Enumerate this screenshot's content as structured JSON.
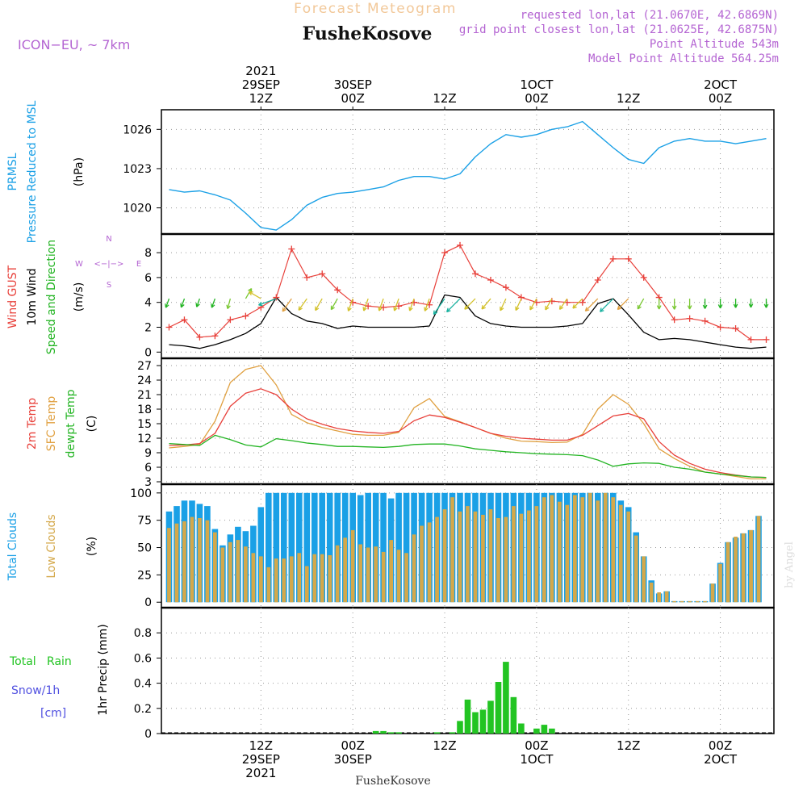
{
  "header": {
    "title": "Forecast Meteogram",
    "location": "FusheKosove",
    "model": "ICON−EU, ~ 7km",
    "requested": "requested lon,lat (21.0670E, 42.6869N)",
    "closest": "grid point closest lon,lat (21.0625E, 42.6875N)",
    "altitude": "Point Altitude 543m",
    "model_altitude": "Model Point Altitude 564.25m",
    "footer_location": "FusheKosove",
    "watermark": "by Angel"
  },
  "colors": {
    "pressure": "#1aa0e6",
    "gust": "#e8403a",
    "wind": "#000000",
    "direction": "#22b422",
    "t2m": "#e8403a",
    "sfc": "#e0a040",
    "dew": "#22b422",
    "total_cloud": "#1aa0e6",
    "low_cloud": "#d4a84a",
    "rain": "#22c422",
    "snow": "#5050e0",
    "title": "#f2c899",
    "meta": "#b464d2"
  },
  "time_axis": {
    "top": [
      {
        "h": 12,
        "lines": [
          "2021",
          "29SEP",
          "12Z"
        ]
      },
      {
        "h": 24,
        "lines": [
          "30SEP",
          "00Z"
        ]
      },
      {
        "h": 36,
        "lines": [
          "12Z"
        ]
      },
      {
        "h": 48,
        "lines": [
          "1OCT",
          "00Z"
        ]
      },
      {
        "h": 60,
        "lines": [
          "12Z"
        ]
      },
      {
        "h": 72,
        "lines": [
          "2OCT",
          "00Z"
        ]
      }
    ],
    "bottom": [
      {
        "h": 12,
        "lines": [
          "12Z",
          "29SEP",
          "2021"
        ]
      },
      {
        "h": 24,
        "lines": [
          "00Z",
          "30SEP"
        ]
      },
      {
        "h": 36,
        "lines": [
          "12Z"
        ]
      },
      {
        "h": 48,
        "lines": [
          "00Z",
          "1OCT"
        ]
      },
      {
        "h": 60,
        "lines": [
          "12Z"
        ]
      },
      {
        "h": 72,
        "lines": [
          "00Z",
          "2OCT"
        ]
      }
    ]
  },
  "panels": {
    "pressure": {
      "label_lines": [
        "PRMSL",
        "Pressure Reduced to MSL"
      ],
      "unit": "(hPa)"
    },
    "wind": {
      "label_gust": "Wind GUST",
      "label_wind": "10m Wind",
      "label_dir": "Speed and Direction",
      "unit": "(m/s)",
      "compass": {
        "n": "N",
        "s": "S",
        "w": "W",
        "e": "E",
        "arrows": "<−|−>"
      }
    },
    "temp": {
      "label_t2m": "2m Temp",
      "label_sfc": "SFC Temp",
      "label_dew": "dewpt Temp",
      "unit": "(C)"
    },
    "cloud": {
      "label_total": "Total Clouds",
      "label_low": "Low Clouds",
      "unit": "(%)"
    },
    "precip": {
      "label_rain": "Total   Rain",
      "label_snow": "Snow/1h",
      "label_snow_unit": "[cm]",
      "label_unit": "1hr Precip (mm)"
    }
  },
  "chart_data": [
    {
      "type": "line",
      "panel": "pressure",
      "xlabel": "",
      "ylabel": "(hPa)",
      "x_hours": [
        0,
        2,
        4,
        6,
        8,
        10,
        12,
        14,
        16,
        18,
        20,
        22,
        24,
        26,
        28,
        30,
        32,
        34,
        36,
        38,
        40,
        42,
        44,
        46,
        48,
        50,
        52,
        54,
        56,
        58,
        60,
        62,
        64,
        66,
        68,
        70,
        72,
        74,
        76,
        78
      ],
      "series": [
        {
          "name": "PRMSL",
          "values": [
            1021.4,
            1021.2,
            1021.3,
            1021.0,
            1020.6,
            1019.6,
            1018.5,
            1018.3,
            1019.1,
            1020.2,
            1020.8,
            1021.1,
            1021.2,
            1021.4,
            1021.6,
            1022.1,
            1022.4,
            1022.4,
            1022.2,
            1022.6,
            1023.9,
            1024.9,
            1025.6,
            1025.4,
            1025.6,
            1026.0,
            1026.2,
            1026.6,
            1025.6,
            1024.6,
            1023.7,
            1023.4,
            1024.6,
            1025.1,
            1025.3,
            1025.1,
            1025.1,
            1024.9,
            1025.1,
            1025.3
          ]
        }
      ],
      "ylim": [
        1018,
        1027.5
      ],
      "yticks": [
        1020,
        1023,
        1026
      ]
    },
    {
      "type": "line",
      "panel": "wind",
      "xlabel": "",
      "ylabel": "(m/s)",
      "x_hours": [
        0,
        2,
        4,
        6,
        8,
        10,
        12,
        14,
        16,
        18,
        20,
        22,
        24,
        26,
        28,
        30,
        32,
        34,
        36,
        38,
        40,
        42,
        44,
        46,
        48,
        50,
        52,
        54,
        56,
        58,
        60,
        62,
        64,
        66,
        68,
        70,
        72,
        74,
        76,
        78
      ],
      "series": [
        {
          "name": "Wind GUST",
          "values": [
            2.0,
            2.6,
            1.2,
            1.3,
            2.6,
            2.9,
            3.6,
            4.4,
            8.3,
            6.0,
            6.3,
            5.0,
            4.0,
            3.7,
            3.6,
            3.7,
            4.0,
            3.8,
            8.0,
            8.6,
            6.3,
            5.8,
            5.2,
            4.4,
            4.0,
            4.1,
            4.0,
            4.0,
            5.8,
            7.5,
            7.5,
            6.0,
            4.4,
            2.6,
            2.7,
            2.5,
            2.0,
            1.9,
            1.0,
            1.0
          ]
        },
        {
          "name": "10m Wind",
          "values": [
            0.6,
            0.5,
            0.3,
            0.6,
            1.0,
            1.5,
            2.3,
            4.4,
            3.1,
            2.5,
            2.3,
            1.9,
            2.1,
            2.0,
            2.0,
            2.0,
            2.0,
            2.1,
            4.6,
            4.4,
            2.9,
            2.3,
            2.1,
            2.0,
            2.0,
            2.0,
            2.1,
            2.3,
            3.9,
            4.3,
            3.0,
            1.6,
            1.0,
            1.1,
            1.0,
            0.8,
            0.6,
            0.4,
            0.3,
            0.4
          ]
        }
      ],
      "ylim": [
        -0.5,
        9.5
      ],
      "yticks": [
        0,
        2,
        4,
        6,
        8
      ]
    },
    {
      "type": "line",
      "panel": "temp",
      "xlabel": "",
      "ylabel": "(C)",
      "x_hours": [
        0,
        2,
        4,
        6,
        8,
        10,
        12,
        14,
        16,
        18,
        20,
        22,
        24,
        26,
        28,
        30,
        32,
        34,
        36,
        38,
        40,
        42,
        44,
        46,
        48,
        50,
        52,
        54,
        56,
        58,
        60,
        62,
        64,
        66,
        68,
        70,
        72,
        74,
        76,
        78
      ],
      "series": [
        {
          "name": "2m Temp",
          "values": [
            10.5,
            10.6,
            10.9,
            13.0,
            18.6,
            21.3,
            22.2,
            21.0,
            18.0,
            16.0,
            14.9,
            14.0,
            13.5,
            13.2,
            13.0,
            13.4,
            15.6,
            16.8,
            16.3,
            15.3,
            14.2,
            13.0,
            12.4,
            12.0,
            11.8,
            11.6,
            11.6,
            12.6,
            14.6,
            16.6,
            17.1,
            16.0,
            11.3,
            8.5,
            6.8,
            5.6,
            4.9,
            4.4,
            4.0,
            3.9
          ]
        },
        {
          "name": "SFC Temp",
          "values": [
            10.0,
            10.3,
            10.7,
            15.5,
            23.5,
            26.2,
            27.0,
            23.0,
            16.9,
            15.2,
            14.2,
            13.5,
            12.8,
            12.6,
            12.6,
            13.2,
            18.3,
            20.2,
            16.5,
            15.4,
            14.2,
            13.0,
            12.0,
            11.4,
            11.3,
            11.1,
            11.2,
            12.8,
            18.0,
            21.0,
            19.0,
            15.0,
            9.8,
            7.8,
            6.2,
            5.0,
            4.6,
            4.1,
            3.6,
            3.6
          ]
        },
        {
          "name": "dewpt Temp",
          "values": [
            10.9,
            10.7,
            10.5,
            12.6,
            11.7,
            10.6,
            10.2,
            11.9,
            11.5,
            11.0,
            10.7,
            10.3,
            10.3,
            10.2,
            10.1,
            10.3,
            10.7,
            10.8,
            10.8,
            10.4,
            9.8,
            9.5,
            9.2,
            9.0,
            8.8,
            8.7,
            8.6,
            8.4,
            7.5,
            6.2,
            6.7,
            6.9,
            6.8,
            6.0,
            5.6,
            5.0,
            4.6,
            4.3,
            4.0,
            3.9
          ]
        }
      ],
      "ylim": [
        2.5,
        28.5
      ],
      "yticks": [
        3,
        6,
        9,
        12,
        15,
        18,
        21,
        24,
        27
      ]
    },
    {
      "type": "bar",
      "panel": "cloud",
      "xlabel": "",
      "ylabel": "(%)",
      "x_hours": [
        0,
        1,
        2,
        3,
        4,
        5,
        6,
        7,
        8,
        9,
        10,
        11,
        12,
        13,
        14,
        15,
        16,
        17,
        18,
        19,
        20,
        21,
        22,
        23,
        24,
        25,
        26,
        27,
        28,
        29,
        30,
        31,
        32,
        33,
        34,
        35,
        36,
        37,
        38,
        39,
        40,
        41,
        42,
        43,
        44,
        45,
        46,
        47,
        48,
        49,
        50,
        51,
        52,
        53,
        54,
        55,
        56,
        57,
        58,
        59,
        60,
        61,
        62,
        63,
        64,
        65,
        66,
        67,
        68,
        69,
        70,
        71,
        72,
        73,
        74,
        75,
        76,
        77,
        78,
        79
      ],
      "series": [
        {
          "name": "Total Clouds",
          "values": [
            83,
            88,
            93,
            93,
            90,
            88,
            67,
            52,
            62,
            69,
            65,
            70,
            87,
            100,
            100,
            100,
            100,
            100,
            100,
            100,
            100,
            100,
            100,
            100,
            100,
            98,
            100,
            100,
            100,
            95,
            100,
            100,
            100,
            100,
            100,
            100,
            100,
            100,
            100,
            100,
            100,
            100,
            100,
            100,
            100,
            100,
            100,
            100,
            100,
            100,
            100,
            100,
            100,
            100,
            100,
            100,
            100,
            100,
            100,
            93,
            87,
            64,
            42,
            20,
            8,
            10,
            1,
            1,
            1,
            1,
            1,
            17,
            36,
            55,
            59,
            63,
            66,
            79,
            0,
            0
          ]
        },
        {
          "name": "Low Clouds",
          "values": [
            68,
            72,
            74,
            78,
            77,
            75,
            64,
            50,
            55,
            57,
            51,
            45,
            42,
            32,
            40,
            40,
            42,
            45,
            33,
            44,
            44,
            43,
            52,
            59,
            66,
            53,
            50,
            51,
            46,
            57,
            48,
            45,
            62,
            70,
            73,
            78,
            85,
            96,
            83,
            88,
            83,
            80,
            85,
            77,
            78,
            88,
            81,
            84,
            88,
            96,
            98,
            92,
            89,
            98,
            96,
            100,
            93,
            100,
            96,
            89,
            83,
            61,
            42,
            18,
            9,
            10,
            1,
            1,
            1,
            1,
            1,
            17,
            35,
            55,
            60,
            63,
            66,
            79,
            0,
            0
          ]
        }
      ],
      "ylim": [
        -5,
        108
      ],
      "yticks": [
        0,
        25,
        50,
        75,
        100
      ]
    },
    {
      "type": "bar",
      "panel": "precip",
      "xlabel": "",
      "ylabel": "1hr Precip (mm)",
      "x_hours": [
        0,
        1,
        2,
        3,
        4,
        5,
        6,
        7,
        8,
        9,
        10,
        11,
        12,
        13,
        14,
        15,
        16,
        17,
        18,
        19,
        20,
        21,
        22,
        23,
        24,
        25,
        26,
        27,
        28,
        29,
        30,
        31,
        32,
        33,
        34,
        35,
        36,
        37,
        38,
        39,
        40,
        41,
        42,
        43,
        44,
        45,
        46,
        47,
        48,
        49,
        50,
        51,
        52,
        53,
        54,
        55,
        56,
        57,
        58,
        59,
        60,
        61,
        62,
        63,
        64,
        65,
        66,
        67,
        68,
        69,
        70,
        71,
        72,
        73,
        74,
        75,
        76,
        77,
        78,
        79
      ],
      "series": [
        {
          "name": "Total Rain",
          "values": [
            0,
            0,
            0,
            0,
            0,
            0,
            0,
            0,
            0,
            0,
            0,
            0,
            0,
            0,
            0,
            0,
            0,
            0,
            0,
            0,
            0,
            0,
            0,
            0,
            0,
            0,
            0,
            0.02,
            0.02,
            0.01,
            0.01,
            0,
            0,
            0,
            0,
            0.01,
            0,
            0.01,
            0.1,
            0.27,
            0.17,
            0.19,
            0.26,
            0.41,
            0.57,
            0.29,
            0.08,
            0,
            0.04,
            0.07,
            0.04,
            0,
            0,
            0,
            0,
            0,
            0,
            0,
            0,
            0,
            0,
            0,
            0,
            0,
            0,
            0,
            0,
            0,
            0,
            0,
            0,
            0,
            0,
            0,
            0,
            0,
            0,
            0,
            0,
            0
          ]
        }
      ],
      "ylim": [
        0,
        1.0
      ],
      "yticks": [
        0,
        0.2,
        0.4,
        0.6,
        0.8
      ]
    },
    {
      "type": "scatter",
      "panel": "wind-direction",
      "xlabel": "",
      "ylabel": "",
      "x_hours": [
        0,
        2,
        4,
        6,
        8,
        10,
        12,
        14,
        16,
        18,
        20,
        22,
        24,
        26,
        28,
        30,
        32,
        34,
        36,
        38,
        40,
        42,
        44,
        46,
        48,
        50,
        52,
        54,
        56,
        58,
        60,
        62,
        64,
        66,
        68,
        70,
        72,
        74,
        76,
        78
      ],
      "series": [
        {
          "name": "direction (deg blowing toward, 0=N,90=E)",
          "values": [
            200,
            200,
            200,
            200,
            195,
            30,
            300,
            250,
            215,
            215,
            210,
            210,
            200,
            200,
            200,
            200,
            200,
            200,
            215,
            225,
            225,
            220,
            205,
            205,
            210,
            210,
            215,
            225,
            225,
            225,
            225,
            210,
            180,
            180,
            180,
            180,
            180,
            180,
            180,
            180
          ]
        }
      ]
    }
  ]
}
